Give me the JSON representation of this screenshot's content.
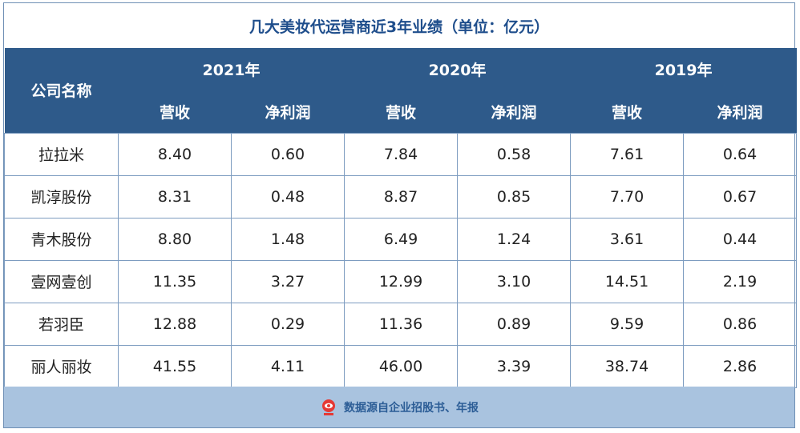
{
  "title": "几大美妆代运营商近3年业绩（单位：亿元）",
  "header": {
    "company_col": "公司名称",
    "years": [
      "2021年",
      "2020年",
      "2019年"
    ],
    "sub": {
      "revenue": "营收",
      "profit": "净利润"
    }
  },
  "rows": [
    {
      "name": "拉拉米",
      "values": [
        "8.40",
        "0.60",
        "7.84",
        "0.58",
        "7.61",
        "0.64"
      ]
    },
    {
      "name": "凯淳股份",
      "values": [
        "8.31",
        "0.48",
        "8.87",
        "0.85",
        "7.70",
        "0.67"
      ]
    },
    {
      "name": "青木股份",
      "values": [
        "8.80",
        "1.48",
        "6.49",
        "1.24",
        "3.61",
        "0.44"
      ]
    },
    {
      "name": "壹网壹创",
      "values": [
        "11.35",
        "3.27",
        "12.99",
        "3.10",
        "14.51",
        "2.19"
      ]
    },
    {
      "name": "若羽臣",
      "values": [
        "12.88",
        "0.29",
        "11.36",
        "0.89",
        "9.59",
        "0.86"
      ]
    },
    {
      "name": "丽人丽妆",
      "values": [
        "41.55",
        "4.11",
        "46.00",
        "3.39",
        "38.74",
        "2.86"
      ]
    }
  ],
  "footer": {
    "text": "数据源自企业招股书、年报",
    "logo_icon": "red-eye-logo-icon",
    "colors": {
      "header": "#2e5a8a",
      "footer": "#a9c3df",
      "title": "#1f4e8c"
    }
  }
}
